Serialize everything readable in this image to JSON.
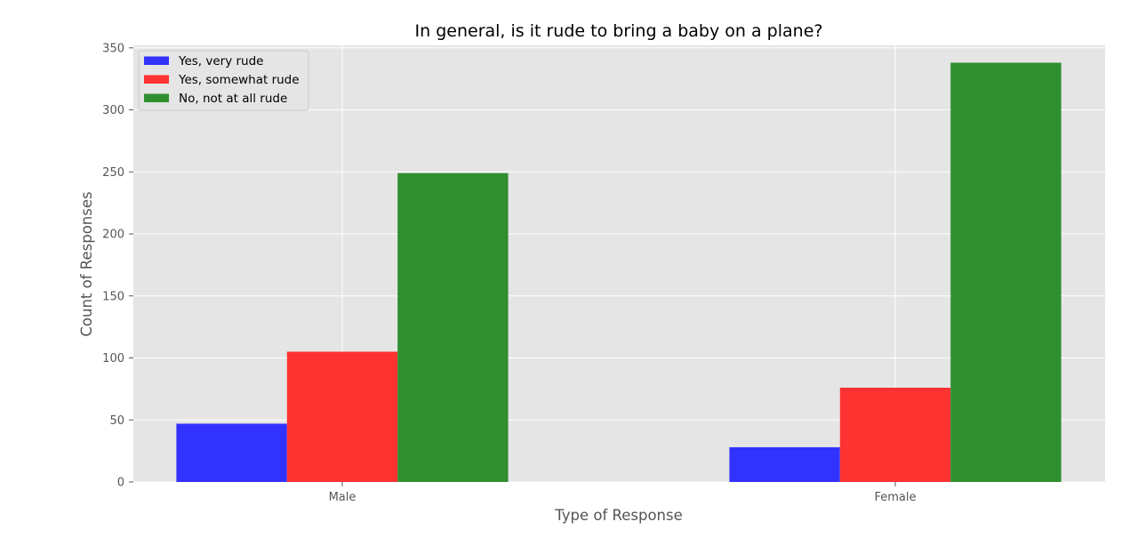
{
  "chart_data": {
    "type": "bar",
    "title": "In general, is it rude to bring a baby on a plane?",
    "xlabel": "Type of Response",
    "ylabel": "Count of Responses",
    "categories": [
      "Male",
      "Female"
    ],
    "series": [
      {
        "name": "Yes, very rude",
        "values": [
          47,
          28
        ],
        "color": "#3232ff"
      },
      {
        "name": "Yes, somewhat rude",
        "values": [
          105,
          76
        ],
        "color": "#ff3232"
      },
      {
        "name": "No, not at all rude",
        "values": [
          249,
          338
        ],
        "color": "#2f8f2f"
      }
    ],
    "ylim": [
      0,
      352
    ],
    "yticks": [
      0,
      50,
      100,
      150,
      200,
      250,
      300,
      350
    ],
    "grid": true,
    "legend_position": "top-left",
    "colors": {
      "background": "#e5e5e5",
      "grid": "#ffffff"
    }
  }
}
